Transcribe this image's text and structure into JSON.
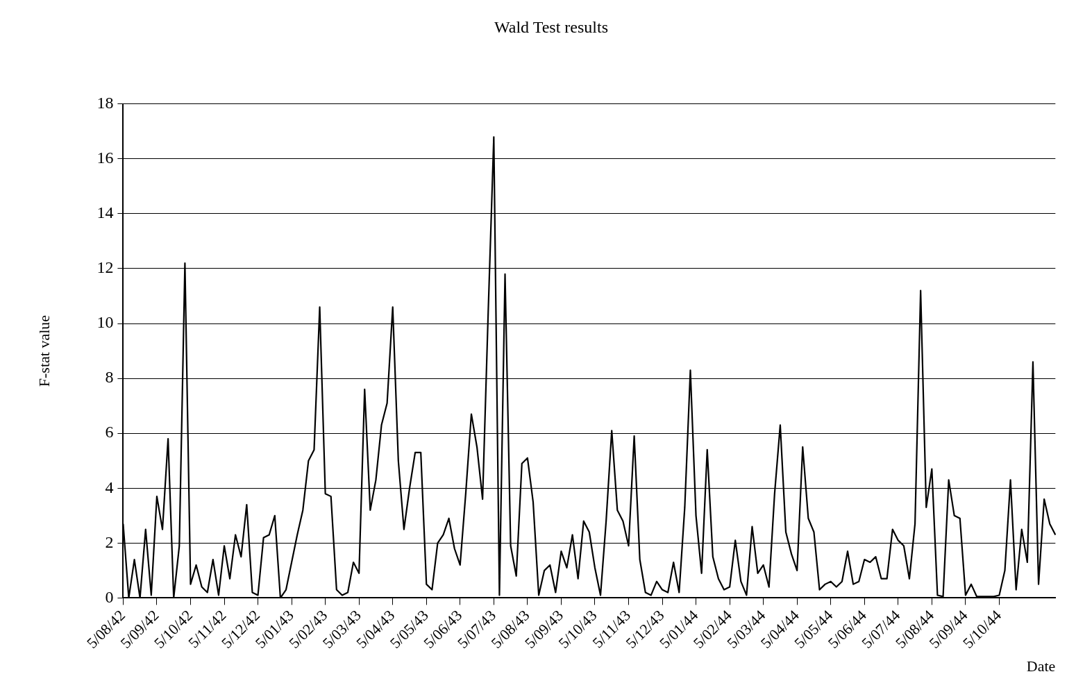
{
  "chart_data": {
    "type": "line",
    "title": "Wald Test results",
    "xlabel": "Date",
    "ylabel": "F-stat value",
    "categories": [
      "5/08/42",
      null,
      null,
      null,
      null,
      null,
      "5/09/42",
      null,
      null,
      null,
      null,
      null,
      "5/10/42",
      null,
      null,
      null,
      null,
      null,
      "5/11/42",
      null,
      null,
      null,
      null,
      null,
      "5/12/42",
      null,
      null,
      null,
      null,
      null,
      "5/01/43",
      null,
      null,
      null,
      null,
      null,
      "5/02/43",
      null,
      null,
      null,
      null,
      null,
      "5/03/43",
      null,
      null,
      null,
      null,
      null,
      "5/04/43",
      null,
      null,
      null,
      null,
      null,
      "5/05/43",
      null,
      null,
      null,
      null,
      null,
      "5/06/43",
      null,
      null,
      null,
      null,
      null,
      "5/07/43",
      null,
      null,
      null,
      null,
      null,
      "5/08/43",
      null,
      null,
      null,
      null,
      null,
      "5/09/43",
      null,
      null,
      null,
      null,
      null,
      "5/10/43",
      null,
      null,
      null,
      null,
      null,
      "5/11/43",
      null,
      null,
      null,
      null,
      null,
      "5/12/43",
      null,
      null,
      null,
      null,
      null,
      "5/01/44",
      null,
      null,
      null,
      null,
      null,
      "5/02/44",
      null,
      null,
      null,
      null,
      null,
      "5/03/44",
      null,
      null,
      null,
      null,
      null,
      "5/04/44",
      null,
      null,
      null,
      null,
      null,
      "5/05/44",
      null,
      null,
      null,
      null,
      null,
      "5/06/44",
      null,
      null,
      null,
      null,
      null,
      "5/07/44",
      null,
      null,
      null,
      null,
      null,
      "5/08/44",
      null,
      null,
      null,
      null,
      null,
      "5/09/44",
      null,
      null,
      null,
      null,
      null,
      "5/10/44",
      null,
      null,
      null,
      null,
      null,
      null,
      null,
      null,
      null,
      null
    ],
    "series": [
      {
        "color": "#000000",
        "values": [
          2.7,
          0,
          1.4,
          0,
          2.5,
          0.1,
          3.7,
          2.5,
          5.8,
          0,
          1.9,
          12.2,
          0.5,
          1.2,
          0.4,
          0.2,
          1.4,
          0.1,
          1.9,
          0.7,
          2.3,
          1.5,
          3.4,
          0.2,
          0.1,
          2.2,
          2.3,
          3.0,
          0,
          0.3,
          1.3,
          2.3,
          3.2,
          5.0,
          5.4,
          10.6,
          3.8,
          3.7,
          0.3,
          0.1,
          0.2,
          1.3,
          0.9,
          7.6,
          3.2,
          4.3,
          6.3,
          7.1,
          10.6,
          5.0,
          2.5,
          4.0,
          5.3,
          5.3,
          0.5,
          0.3,
          2.0,
          2.3,
          2.9,
          1.8,
          1.2,
          3.8,
          6.7,
          5.5,
          3.6,
          10.4,
          16.8,
          0.1,
          11.8,
          1.9,
          0.8,
          4.9,
          5.1,
          3.5,
          0.1,
          1.0,
          1.2,
          0.2,
          1.7,
          1.1,
          2.3,
          0.7,
          2.8,
          2.4,
          1.1,
          0.1,
          2.8,
          6.1,
          3.2,
          2.8,
          1.9,
          5.9,
          1.4,
          0.2,
          0.1,
          0.6,
          0.3,
          0.2,
          1.3,
          0.2,
          3.3,
          8.3,
          3.0,
          0.9,
          5.4,
          1.5,
          0.7,
          0.3,
          0.4,
          2.1,
          0.6,
          0.1,
          2.6,
          0.9,
          1.2,
          0.4,
          3.8,
          6.3,
          2.4,
          1.6,
          1.0,
          5.5,
          2.9,
          2.4,
          0.3,
          0.5,
          0.6,
          0.4,
          0.6,
          1.7,
          0.5,
          0.6,
          1.4,
          1.3,
          1.5,
          0.7,
          0.7,
          2.5,
          2.1,
          1.9,
          0.7,
          2.7,
          11.2,
          3.3,
          4.7,
          0.1,
          0.05,
          4.3,
          3.0,
          2.9,
          0.1,
          0.5,
          0.05,
          0.05,
          0.05,
          0.05,
          0.1,
          1.0,
          4.3,
          0.3,
          2.5,
          1.3,
          8.6,
          0.5,
          3.6,
          2.7,
          2.3
        ]
      }
    ],
    "ylim": [
      0,
      18
    ],
    "yticks": [
      0,
      2,
      4,
      6,
      8,
      10,
      12,
      14,
      16,
      18
    ],
    "grid": "y",
    "legend": false,
    "marker": "none",
    "line_style": "solid"
  }
}
